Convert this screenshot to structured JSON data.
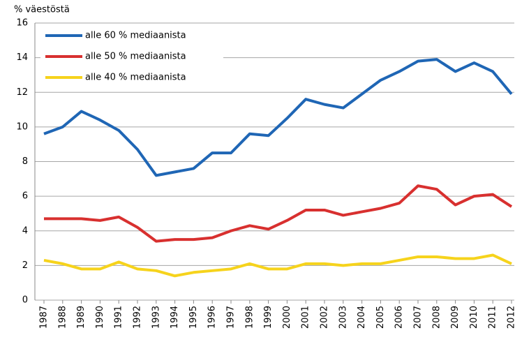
{
  "chart_data": {
    "type": "line",
    "y_label": "% väestöstä",
    "categories": [
      "1987",
      "1988",
      "1989",
      "1990",
      "1991",
      "1992",
      "1993",
      "1994",
      "1995",
      "1996",
      "1997",
      "1998",
      "1999",
      "2000",
      "2001",
      "2002",
      "2003",
      "2004",
      "2005",
      "2006",
      "2007",
      "2008",
      "2009",
      "2010",
      "2011",
      "2012"
    ],
    "series": [
      {
        "name": "alle 60 % mediaanista",
        "color": "#1f66b5",
        "values": [
          9.6,
          10.0,
          10.9,
          10.4,
          9.8,
          8.7,
          7.2,
          7.4,
          7.6,
          8.5,
          8.5,
          9.6,
          9.5,
          10.5,
          11.6,
          11.3,
          11.1,
          11.9,
          12.7,
          13.2,
          13.8,
          13.9,
          13.2,
          13.7,
          13.2,
          11.9
        ]
      },
      {
        "name": "alle 50 % mediaanista",
        "color": "#d8302f",
        "values": [
          4.7,
          4.7,
          4.7,
          4.6,
          4.8,
          4.2,
          3.4,
          3.5,
          3.5,
          3.6,
          4.0,
          4.3,
          4.1,
          4.6,
          5.2,
          5.2,
          4.9,
          5.1,
          5.3,
          5.6,
          6.6,
          6.4,
          5.5,
          6.0,
          6.1,
          5.4
        ]
      },
      {
        "name": "alle 40 % mediaanista",
        "color": "#f6d31c",
        "values": [
          2.3,
          2.1,
          1.8,
          1.8,
          2.2,
          1.8,
          1.7,
          1.4,
          1.6,
          1.7,
          1.8,
          2.1,
          1.8,
          1.8,
          2.1,
          2.1,
          2.0,
          2.1,
          2.1,
          2.3,
          2.5,
          2.5,
          2.4,
          2.4,
          2.6,
          2.1
        ]
      }
    ],
    "ylim": [
      0,
      16
    ],
    "yticks": [
      0,
      2,
      4,
      6,
      8,
      10,
      12,
      14,
      16
    ],
    "grid": true,
    "legend": "upper left"
  }
}
